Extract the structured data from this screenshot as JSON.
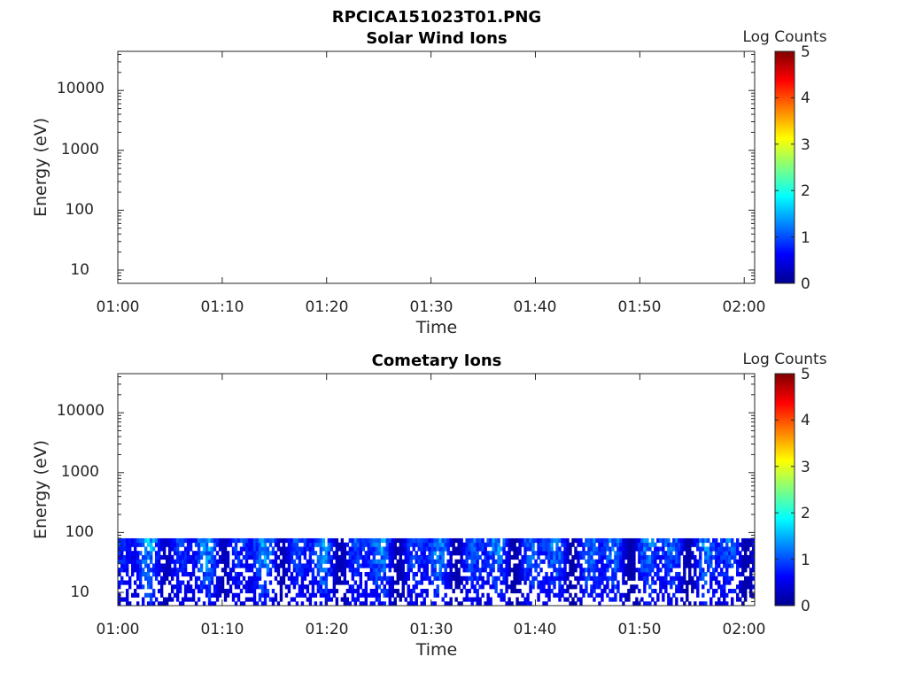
{
  "figure_title": "RPCICA151023T01.PNG",
  "chart_data": [
    {
      "type": "heatmap",
      "title": "Solar Wind Ions",
      "xlabel": "Time",
      "ylabel": "Energy (eV)",
      "x_ticks": [
        "01:00",
        "01:10",
        "01:20",
        "01:30",
        "01:40",
        "01:50",
        "02:00"
      ],
      "x_range_minutes": [
        0,
        61
      ],
      "y_ticks": [
        "10",
        "100",
        "1000",
        "10000"
      ],
      "y_scale": "log",
      "y_range": [
        6,
        45000
      ],
      "colorbar": {
        "label": "Log Counts",
        "range": [
          0,
          5
        ],
        "ticks": [
          "0",
          "1",
          "2",
          "3",
          "4",
          "5"
        ],
        "colormap": "jet"
      },
      "data_description": "no counts"
    },
    {
      "type": "heatmap",
      "title": "Cometary Ions",
      "xlabel": "Time",
      "ylabel": "Energy (eV)",
      "x_ticks": [
        "01:00",
        "01:10",
        "01:20",
        "01:30",
        "01:40",
        "01:50",
        "02:00"
      ],
      "x_range_minutes": [
        0,
        61
      ],
      "y_ticks": [
        "10",
        "100",
        "1000",
        "10000"
      ],
      "y_scale": "log",
      "y_range": [
        6,
        45000
      ],
      "colorbar": {
        "label": "Log Counts",
        "range": [
          0,
          5
        ],
        "ticks": [
          "0",
          "1",
          "2",
          "3",
          "4",
          "5"
        ],
        "colormap": "jet"
      },
      "data_energy_range_eV": [
        6,
        80
      ],
      "typical_log_counts": [
        0.2,
        1.8
      ],
      "peak_log_counts": 1.8
    }
  ]
}
